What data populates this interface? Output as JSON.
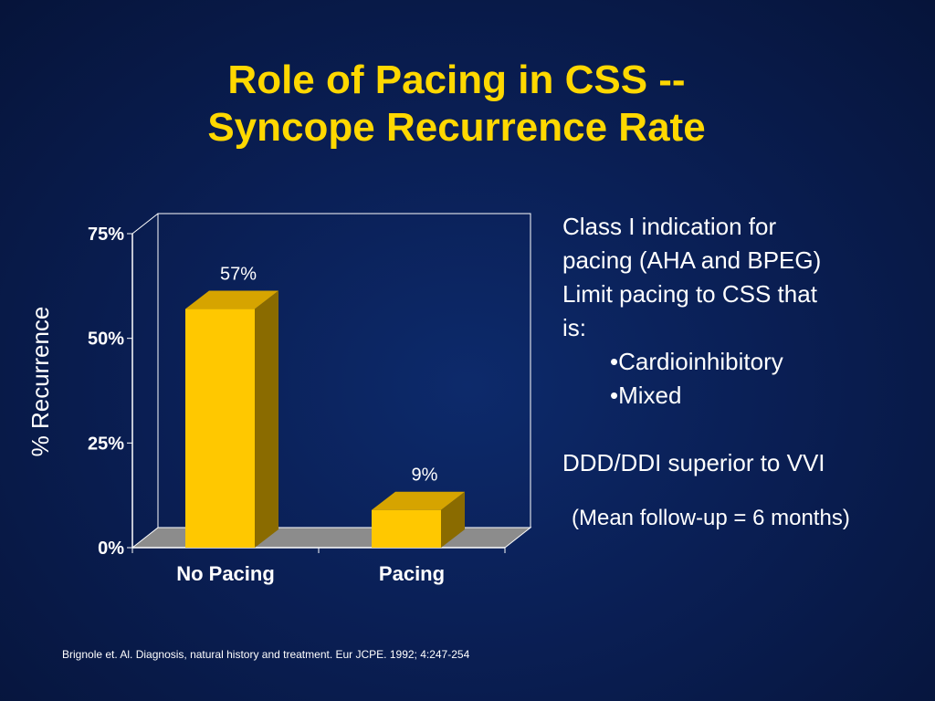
{
  "title": {
    "line1": "Role of Pacing in CSS --",
    "line2": "Syncope Recurrence Rate"
  },
  "colors": {
    "background": "#0a1f55",
    "title": "#ffd800",
    "bar_front": "#ffc800",
    "bar_top": "#d6a400",
    "bar_side": "#8a6b00",
    "floor": "#8c8c8c"
  },
  "chart_data": {
    "type": "bar",
    "categories": [
      "No Pacing",
      "Pacing"
    ],
    "values": [
      57,
      9
    ],
    "data_labels": [
      "57%",
      "9%"
    ],
    "ylabel": "% Recurrence",
    "xlabel": "",
    "ylim": [
      0,
      75
    ],
    "yticks": [
      0,
      25,
      50,
      75
    ],
    "ytick_labels": [
      "0%",
      "25%",
      "50%",
      "75%"
    ],
    "grid": false,
    "style": "3d"
  },
  "text_panel": {
    "line1": "Class I indication for",
    "line2": "pacing (AHA and BPEG)",
    "line3": "Limit pacing to CSS that",
    "line4": "is:",
    "bullet1": "•Cardioinhibitory",
    "bullet2": "•Mixed",
    "conclusion": "DDD/DDI superior to VVI"
  },
  "followup": "(Mean follow-up = 6 months)",
  "citation": "Brignole et. Al. Diagnosis, natural history and treatment. Eur JCPE. 1992; 4:247-254"
}
